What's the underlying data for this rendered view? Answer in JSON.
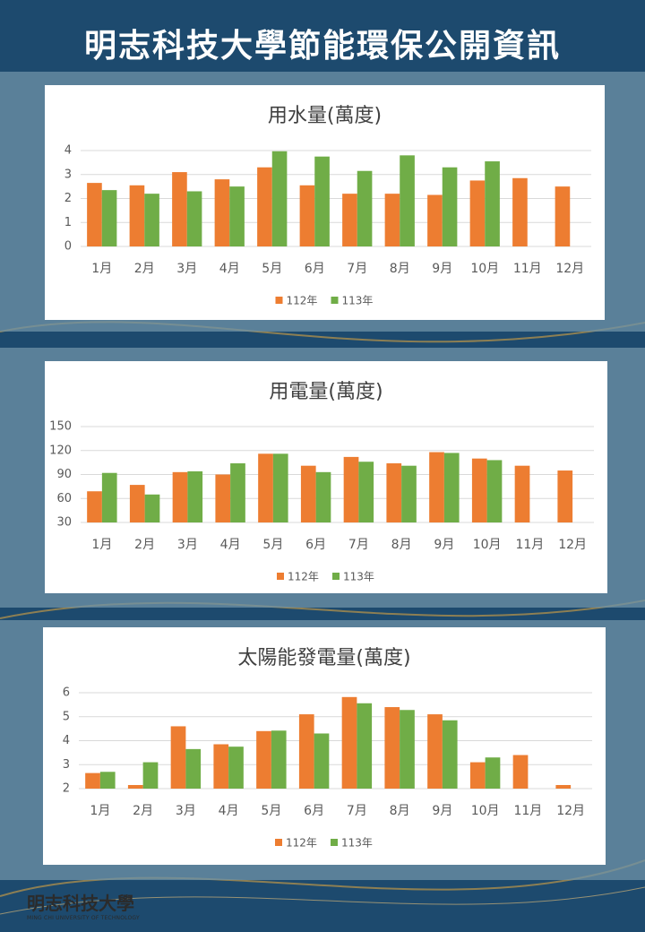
{
  "title": "明志科技大學節能環保公開資訊",
  "chart_data": [
    {
      "type": "bar",
      "title": "用水量(萬度)",
      "categories": [
        "1月",
        "2月",
        "3月",
        "4月",
        "5月",
        "6月",
        "7月",
        "8月",
        "9月",
        "10月",
        "11月",
        "12月"
      ],
      "series": [
        {
          "name": "112年",
          "color": "#ed7d31",
          "values": [
            2.65,
            2.55,
            3.1,
            2.8,
            3.3,
            2.55,
            2.2,
            2.2,
            2.15,
            2.75,
            2.85,
            2.5
          ]
        },
        {
          "name": "113年",
          "color": "#70ad47",
          "values": [
            2.35,
            2.2,
            2.3,
            2.5,
            3.97,
            3.75,
            3.15,
            3.8,
            3.3,
            3.55,
            null,
            null
          ]
        }
      ],
      "ylim": [
        0,
        4
      ],
      "yticks": [
        0,
        1,
        2,
        3,
        4
      ],
      "grid": true
    },
    {
      "type": "bar",
      "title": "用電量(萬度)",
      "categories": [
        "1月",
        "2月",
        "3月",
        "4月",
        "5月",
        "6月",
        "7月",
        "8月",
        "9月",
        "10月",
        "11月",
        "12月"
      ],
      "series": [
        {
          "name": "112年",
          "color": "#ed7d31",
          "values": [
            69,
            77,
            93,
            90,
            116,
            101,
            112,
            104,
            118,
            110,
            101,
            95
          ]
        },
        {
          "name": "113年",
          "color": "#70ad47",
          "values": [
            92,
            65,
            94,
            104,
            116,
            93,
            106,
            101,
            117,
            108,
            null,
            null
          ]
        }
      ],
      "ylim": [
        30,
        150
      ],
      "yticks": [
        30,
        60,
        90,
        120,
        150
      ],
      "grid": true
    },
    {
      "type": "bar",
      "title": "太陽能發電量(萬度)",
      "categories": [
        "1月",
        "2月",
        "3月",
        "4月",
        "5月",
        "6月",
        "7月",
        "8月",
        "9月",
        "10月",
        "11月",
        "12月"
      ],
      "series": [
        {
          "name": "112年",
          "color": "#ed7d31",
          "values": [
            2.65,
            2.15,
            4.6,
            3.85,
            4.4,
            5.1,
            5.82,
            5.4,
            5.1,
            3.1,
            3.4,
            2.15
          ]
        },
        {
          "name": "113年",
          "color": "#70ad47",
          "values": [
            2.7,
            3.1,
            3.65,
            3.75,
            4.42,
            4.3,
            5.56,
            5.28,
            4.85,
            3.3,
            null,
            null
          ]
        }
      ],
      "ylim": [
        2,
        6
      ],
      "yticks": [
        2,
        3,
        4,
        5,
        6
      ],
      "grid": true
    }
  ],
  "footer": {
    "logo_text": "明志科技大學",
    "logo_subtext": "MING CHI UNIVERSITY OF TECHNOLOGY"
  }
}
